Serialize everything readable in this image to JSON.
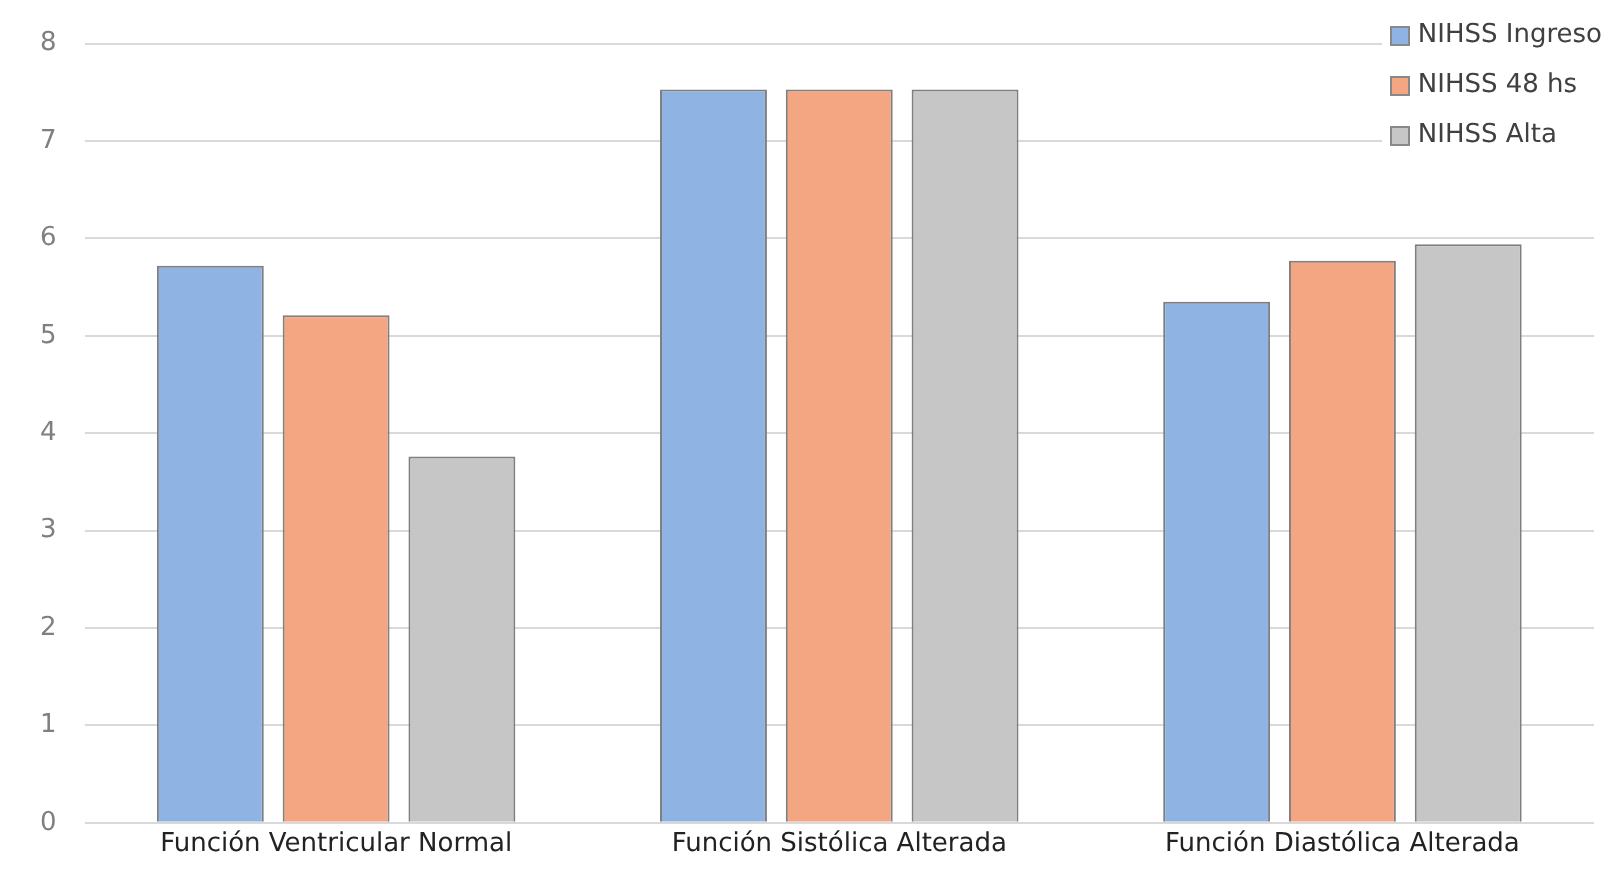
{
  "chart_data": {
    "type": "bar",
    "categories": [
      "Función Ventricular Normal",
      "Función Sistólica Alterada",
      "Función Diastólica Alterada"
    ],
    "series": [
      {
        "name": "NIHSS Ingreso",
        "color": "#8fb4e3",
        "values": [
          5.72,
          7.53,
          5.35
        ]
      },
      {
        "name": "NIHSS 48 hs",
        "color": "#f4a582",
        "values": [
          5.21,
          7.53,
          5.77
        ]
      },
      {
        "name": "NIHSS Alta",
        "color": "#c6c6c6",
        "values": [
          3.76,
          7.53,
          5.94
        ]
      }
    ],
    "ylim": [
      0,
      8
    ],
    "yticks": [
      0,
      1,
      2,
      3,
      4,
      5,
      6,
      7,
      8
    ],
    "grid": "y",
    "legend": "top right"
  }
}
